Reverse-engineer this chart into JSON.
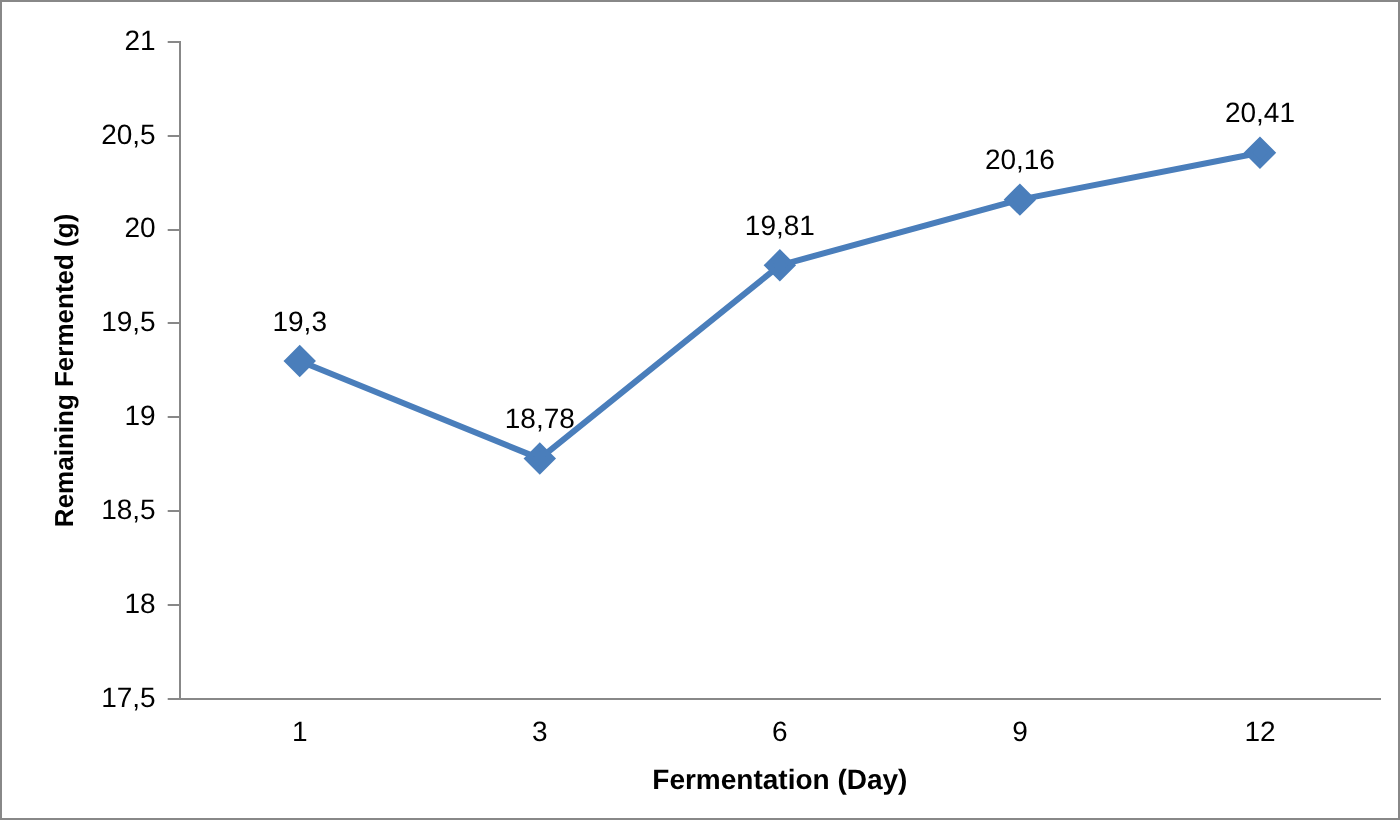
{
  "chart_data": {
    "type": "line",
    "xlabel": "Fermentation (Day)",
    "ylabel": "Remaining Fermented (g)",
    "categories": [
      "1",
      "3",
      "6",
      "9",
      "12"
    ],
    "series": [
      {
        "color": "#4a7ebb",
        "values": [
          19.3,
          18.78,
          19.81,
          20.16,
          20.41
        ],
        "value_labels": [
          "19,3",
          "18,78",
          "19,81",
          "20,16",
          "20,41"
        ]
      }
    ],
    "ylim": [
      17.5,
      21
    ],
    "yticks": [
      {
        "value": 17.5,
        "label": "17,5"
      },
      {
        "value": 18,
        "label": "18"
      },
      {
        "value": 18.5,
        "label": "18,5"
      },
      {
        "value": 19,
        "label": "19"
      },
      {
        "value": 19.5,
        "label": "19,5"
      },
      {
        "value": 20,
        "label": "20"
      },
      {
        "value": 20.5,
        "label": "20,5"
      },
      {
        "value": 21,
        "label": "21"
      }
    ],
    "grid": false,
    "legend": false,
    "marker": "diamond",
    "line_style": "solid"
  }
}
